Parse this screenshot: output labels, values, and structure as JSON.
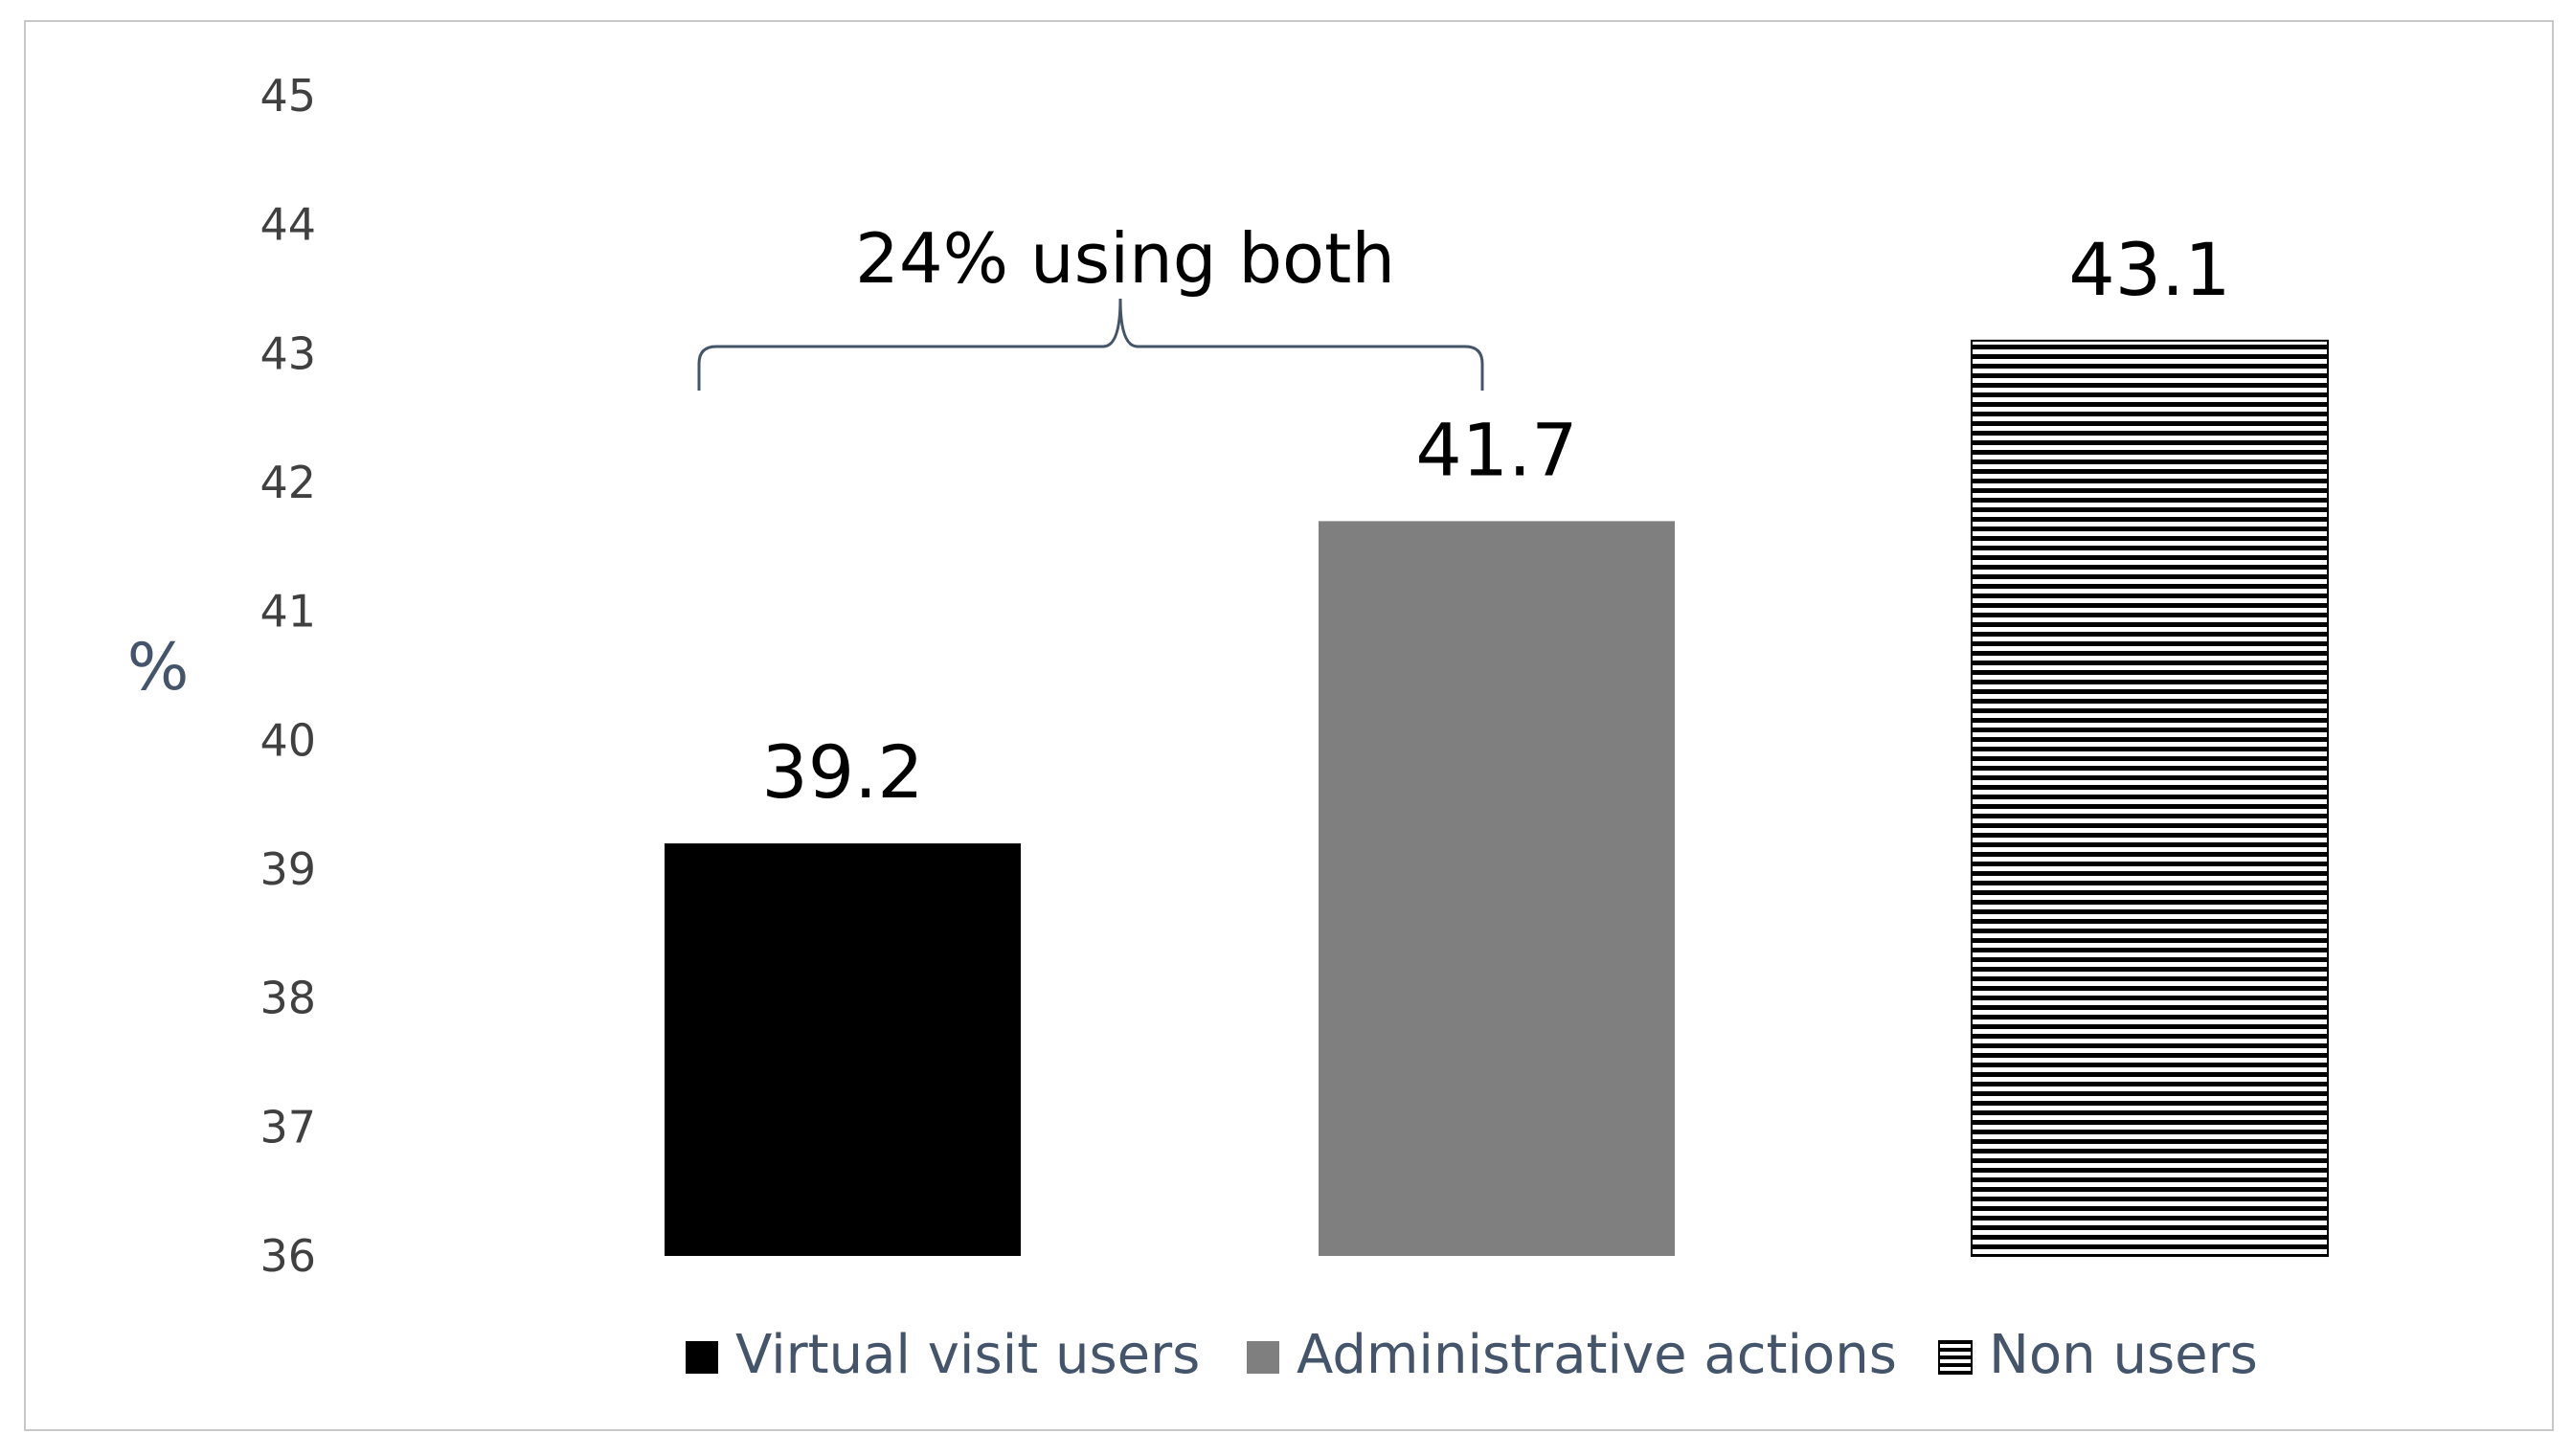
{
  "chart_data": {
    "type": "bar",
    "title": "",
    "xlabel": "",
    "ylabel": "%",
    "ylim": [
      36,
      45
    ],
    "yticks": [
      36,
      37,
      38,
      39,
      40,
      41,
      42,
      43,
      44,
      45
    ],
    "grid": false,
    "legend_position": "bottom",
    "categories": [
      "Virtual visit users",
      "Administrative actions",
      "Non users"
    ],
    "values": [
      39.2,
      41.7,
      43.1
    ],
    "data_labels": [
      "39.2",
      "41.7",
      "43.1"
    ],
    "bar_styles": [
      "solid-black",
      "solid-gray",
      "horizontal-stripes"
    ],
    "colors": {
      "virtual": "#000000",
      "admin": "#7f7f7f",
      "stripe": "#000000",
      "axis_text": "#404040",
      "ylabel": "#44546a",
      "legend_text": "#44546a",
      "bracket": "#44546a",
      "frame": "#c8c8c8"
    },
    "annotation": {
      "text": "24% using both",
      "spans_categories": [
        "Virtual visit users",
        "Administrative actions"
      ]
    }
  }
}
